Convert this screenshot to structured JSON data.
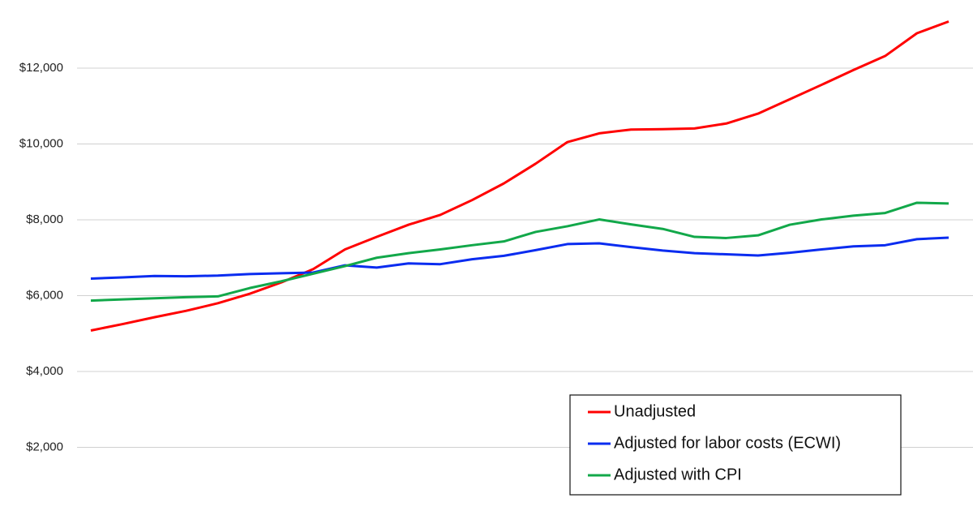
{
  "chart_data": {
    "type": "line",
    "categories": [
      null,
      null,
      null,
      null,
      null,
      null,
      null,
      null,
      null,
      null,
      null,
      null,
      null,
      null,
      null,
      null,
      null,
      null,
      null,
      null,
      null,
      null,
      null,
      null,
      null,
      null,
      null,
      null
    ],
    "series": [
      {
        "name": "Unadjusted",
        "color": "#ff0000",
        "values": [
          5080,
          5250,
          5430,
          5600,
          5800,
          6050,
          6350,
          6700,
          7220,
          7550,
          7870,
          8130,
          8520,
          8960,
          9480,
          10050,
          10280,
          10380,
          10390,
          10410,
          10540,
          10800,
          11180,
          11560,
          11950,
          12320,
          12920,
          13230
        ]
      },
      {
        "name": "Adjusted for labor costs (ECWI)",
        "color": "#0a2cf0",
        "values": [
          6450,
          6480,
          6520,
          6510,
          6530,
          6570,
          6590,
          6610,
          6800,
          6740,
          6850,
          6830,
          6960,
          7050,
          7200,
          7360,
          7380,
          7280,
          7190,
          7120,
          7090,
          7060,
          7130,
          7220,
          7300,
          7330,
          7490,
          7530
        ]
      },
      {
        "name": "Adjusted with CPI",
        "color": "#12a84a",
        "values": [
          5870,
          5900,
          5930,
          5960,
          5980,
          6200,
          6380,
          6580,
          6780,
          7000,
          7120,
          7220,
          7330,
          7430,
          7680,
          7830,
          8010,
          7880,
          7760,
          7550,
          7520,
          7590,
          7870,
          8010,
          8110,
          8180,
          8450,
          8430
        ]
      }
    ],
    "ylim": [
      0,
      14000
    ],
    "yticks": [
      {
        "value": 2000,
        "label": "$2,000"
      },
      {
        "value": 4000,
        "label": "$4,000"
      },
      {
        "value": 6000,
        "label": "$6,000"
      },
      {
        "value": 8000,
        "label": "$8,000"
      },
      {
        "value": 10000,
        "label": "$10,000"
      },
      {
        "value": 12000,
        "label": "$12,000"
      }
    ],
    "grid": true,
    "legend": "lower right"
  }
}
